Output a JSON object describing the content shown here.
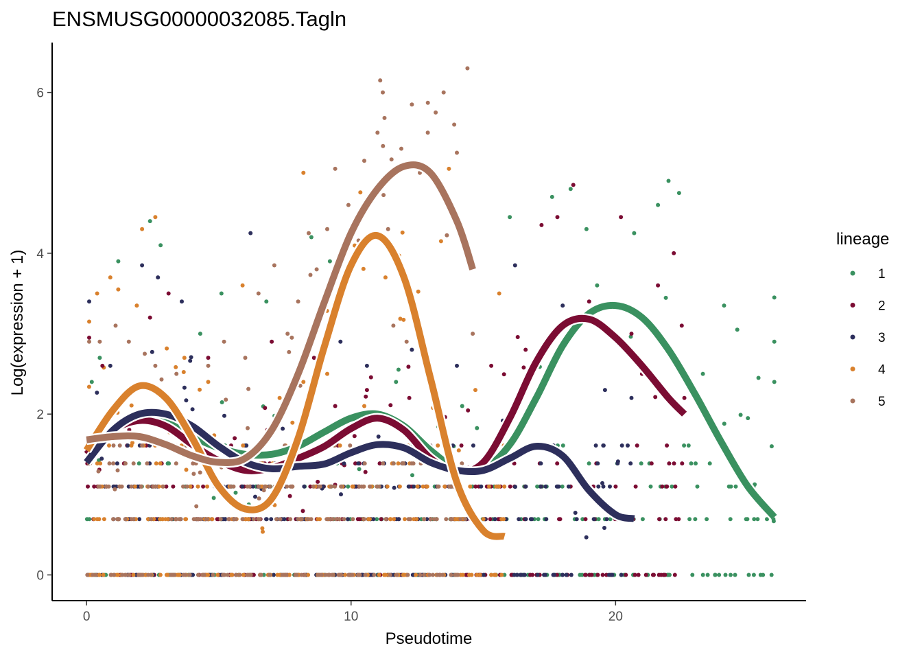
{
  "chart_data": {
    "type": "scatter",
    "title": "ENSMUSG00000032085.Tagln",
    "xlabel": "Pseudotime",
    "ylabel": "Log(expression + 1)",
    "xlim": [
      -1.3,
      27.2
    ],
    "ylim": [
      -0.32,
      6.62
    ],
    "x_ticks": [
      0,
      10,
      20
    ],
    "y_ticks": [
      0,
      2,
      4,
      6
    ],
    "x_tick_labels": [
      "0",
      "10",
      "20"
    ],
    "y_tick_labels": [
      "0",
      "2",
      "4",
      "6"
    ],
    "legend": {
      "title": "lineage",
      "position": "right",
      "entries": [
        "1",
        "2",
        "3",
        "4",
        "5"
      ]
    },
    "series": [
      {
        "name": "1",
        "color": "#3a9160",
        "smooth_x": [
          0,
          1,
          2,
          3,
          4,
          5,
          6,
          7,
          8,
          9,
          10,
          11,
          12,
          13,
          14,
          15,
          16,
          17,
          18,
          19,
          20,
          21,
          22,
          23,
          24,
          25,
          26
        ],
        "smooth_y": [
          1.5,
          1.8,
          1.95,
          1.9,
          1.72,
          1.58,
          1.5,
          1.5,
          1.6,
          1.78,
          1.95,
          2.0,
          1.85,
          1.55,
          1.32,
          1.32,
          1.62,
          2.2,
          2.85,
          3.25,
          3.35,
          3.2,
          2.8,
          2.25,
          1.65,
          1.1,
          0.72
        ],
        "points": [
          {
            "x": 0.2,
            "y": 2.4
          },
          {
            "x": 0.5,
            "y": 2.7
          },
          {
            "x": 1.2,
            "y": 3.9
          },
          {
            "x": 2.4,
            "y": 4.4
          },
          {
            "x": 2.8,
            "y": 4.1
          },
          {
            "x": 4.3,
            "y": 3.0
          },
          {
            "x": 5.1,
            "y": 3.5
          },
          {
            "x": 6.8,
            "y": 3.4
          },
          {
            "x": 8.5,
            "y": 4.2
          },
          {
            "x": 9.2,
            "y": 3.9
          },
          {
            "x": 11.7,
            "y": 2.4
          },
          {
            "x": 14.2,
            "y": 2.1
          },
          {
            "x": 16.0,
            "y": 4.45
          },
          {
            "x": 17.6,
            "y": 4.7
          },
          {
            "x": 18.3,
            "y": 4.8
          },
          {
            "x": 18.9,
            "y": 4.3
          },
          {
            "x": 19.3,
            "y": 3.6
          },
          {
            "x": 20.7,
            "y": 4.25
          },
          {
            "x": 21.6,
            "y": 4.6
          },
          {
            "x": 22.0,
            "y": 4.9
          },
          {
            "x": 22.4,
            "y": 4.75
          },
          {
            "x": 23.3,
            "y": 2.5
          },
          {
            "x": 24.1,
            "y": 3.35
          },
          {
            "x": 24.6,
            "y": 3.05
          },
          {
            "x": 25.0,
            "y": 1.95
          },
          {
            "x": 25.4,
            "y": 2.45
          },
          {
            "x": 25.9,
            "y": 1.6
          },
          {
            "x": 26.0,
            "y": 3.45
          },
          {
            "x": 26.0,
            "y": 2.9
          },
          {
            "x": 26.0,
            "y": 2.4
          }
        ]
      },
      {
        "name": "2",
        "color": "#7b0c33",
        "smooth_x": [
          0,
          1,
          2,
          3,
          4,
          5,
          6,
          7,
          8,
          9,
          10,
          11,
          12,
          13,
          14,
          15,
          16,
          17,
          18,
          19,
          20,
          21,
          22,
          22.6
        ],
        "smooth_y": [
          1.5,
          1.8,
          1.92,
          1.85,
          1.62,
          1.42,
          1.3,
          1.33,
          1.45,
          1.6,
          1.82,
          1.95,
          1.8,
          1.45,
          1.28,
          1.4,
          1.95,
          2.65,
          3.1,
          3.18,
          2.95,
          2.6,
          2.2,
          2.0
        ],
        "points": [
          {
            "x": 0.1,
            "y": 2.95
          },
          {
            "x": 0.6,
            "y": 2.6
          },
          {
            "x": 1.3,
            "y": 1.7
          },
          {
            "x": 2.4,
            "y": 3.2
          },
          {
            "x": 3.1,
            "y": 3.5
          },
          {
            "x": 4.6,
            "y": 2.7
          },
          {
            "x": 5.6,
            "y": 1.7
          },
          {
            "x": 7.0,
            "y": 2.9
          },
          {
            "x": 8.6,
            "y": 2.7
          },
          {
            "x": 9.4,
            "y": 2.1
          },
          {
            "x": 10.6,
            "y": 2.3
          },
          {
            "x": 12.2,
            "y": 2.2
          },
          {
            "x": 15.3,
            "y": 2.6
          },
          {
            "x": 16.6,
            "y": 2.8
          },
          {
            "x": 17.2,
            "y": 4.35
          },
          {
            "x": 17.8,
            "y": 4.45
          },
          {
            "x": 18.4,
            "y": 4.85
          },
          {
            "x": 19.0,
            "y": 3.4
          },
          {
            "x": 20.2,
            "y": 4.45
          },
          {
            "x": 20.6,
            "y": 3.0
          },
          {
            "x": 21.0,
            "y": 2.5
          },
          {
            "x": 21.6,
            "y": 3.6
          },
          {
            "x": 22.2,
            "y": 4.0
          },
          {
            "x": 22.5,
            "y": 3.1
          },
          {
            "x": 22.6,
            "y": 2.2
          }
        ]
      },
      {
        "name": "3",
        "color": "#2d2f5c",
        "smooth_x": [
          0,
          1,
          2,
          3,
          4,
          5,
          6,
          7,
          8,
          9,
          10,
          11,
          12,
          13,
          14,
          15,
          16,
          17,
          18,
          19,
          20,
          20.7
        ],
        "smooth_y": [
          1.4,
          1.8,
          2.0,
          2.0,
          1.85,
          1.6,
          1.4,
          1.32,
          1.35,
          1.38,
          1.52,
          1.62,
          1.58,
          1.4,
          1.3,
          1.3,
          1.45,
          1.6,
          1.48,
          1.05,
          0.75,
          0.7
        ],
        "points": [
          {
            "x": 0.1,
            "y": 3.4
          },
          {
            "x": 0.9,
            "y": 2.6
          },
          {
            "x": 2.1,
            "y": 3.85
          },
          {
            "x": 2.7,
            "y": 3.7
          },
          {
            "x": 3.6,
            "y": 3.4
          },
          {
            "x": 6.2,
            "y": 4.25
          },
          {
            "x": 9.6,
            "y": 2.9
          },
          {
            "x": 10.6,
            "y": 2.6
          },
          {
            "x": 12.3,
            "y": 2.8
          },
          {
            "x": 14.0,
            "y": 2.6
          },
          {
            "x": 16.2,
            "y": 3.85
          },
          {
            "x": 17.4,
            "y": 2.5
          },
          {
            "x": 18.0,
            "y": 3.35
          },
          {
            "x": 19.6,
            "y": 2.3
          },
          {
            "x": 20.6,
            "y": 2.2
          }
        ]
      },
      {
        "name": "4",
        "color": "#d9812d",
        "smooth_x": [
          0,
          1,
          2,
          3,
          4,
          5,
          6,
          7,
          8,
          9,
          10,
          11,
          12,
          13,
          14,
          15,
          15.8
        ],
        "smooth_y": [
          1.55,
          2.05,
          2.35,
          2.2,
          1.7,
          1.1,
          0.82,
          0.95,
          1.7,
          2.85,
          3.85,
          4.22,
          3.7,
          2.45,
          1.15,
          0.55,
          0.48
        ],
        "points": [
          {
            "x": 0.1,
            "y": 3.15
          },
          {
            "x": 0.4,
            "y": 3.5
          },
          {
            "x": 0.9,
            "y": 3.7
          },
          {
            "x": 1.2,
            "y": 3.55
          },
          {
            "x": 1.9,
            "y": 3.35
          },
          {
            "x": 2.1,
            "y": 4.3
          },
          {
            "x": 2.6,
            "y": 4.45
          },
          {
            "x": 3.7,
            "y": 2.7
          },
          {
            "x": 4.6,
            "y": 2.4
          },
          {
            "x": 5.9,
            "y": 3.6
          },
          {
            "x": 7.3,
            "y": 2.2
          },
          {
            "x": 8.2,
            "y": 2.4
          },
          {
            "x": 8.2,
            "y": 5.0
          },
          {
            "x": 9.1,
            "y": 2.5
          },
          {
            "x": 10.5,
            "y": 2.1
          },
          {
            "x": 11.3,
            "y": 3.7
          },
          {
            "x": 13.4,
            "y": 4.15
          },
          {
            "x": 13.7,
            "y": 5.05
          },
          {
            "x": 14.7,
            "y": 2.3
          },
          {
            "x": 15.6,
            "y": 3.5
          }
        ]
      },
      {
        "name": "5",
        "color": "#a8745e",
        "smooth_x": [
          0,
          1,
          2,
          3,
          4,
          5,
          6,
          7,
          8,
          9,
          10,
          11,
          12,
          13,
          14,
          14.6
        ],
        "smooth_y": [
          1.68,
          1.72,
          1.72,
          1.62,
          1.48,
          1.4,
          1.45,
          1.8,
          2.5,
          3.4,
          4.25,
          4.8,
          5.08,
          5.0,
          4.4,
          3.8
        ],
        "points": [
          {
            "x": 0.1,
            "y": 2.9
          },
          {
            "x": 0.5,
            "y": 2.9
          },
          {
            "x": 1.1,
            "y": 3.1
          },
          {
            "x": 1.6,
            "y": 2.9
          },
          {
            "x": 2.2,
            "y": 2.75
          },
          {
            "x": 2.6,
            "y": 2.6
          },
          {
            "x": 3.4,
            "y": 2.5
          },
          {
            "x": 4.6,
            "y": 2.6
          },
          {
            "x": 5.2,
            "y": 2.9
          },
          {
            "x": 6.0,
            "y": 2.7
          },
          {
            "x": 6.5,
            "y": 3.5
          },
          {
            "x": 7.1,
            "y": 3.85
          },
          {
            "x": 7.6,
            "y": 3.0
          },
          {
            "x": 8.0,
            "y": 3.4
          },
          {
            "x": 8.4,
            "y": 4.25
          },
          {
            "x": 8.7,
            "y": 3.8
          },
          {
            "x": 9.1,
            "y": 4.3
          },
          {
            "x": 9.4,
            "y": 5.05
          },
          {
            "x": 9.9,
            "y": 4.6
          },
          {
            "x": 10.2,
            "y": 3.9
          },
          {
            "x": 10.5,
            "y": 5.15
          },
          {
            "x": 10.8,
            "y": 4.7
          },
          {
            "x": 11.0,
            "y": 5.5
          },
          {
            "x": 11.1,
            "y": 6.15
          },
          {
            "x": 11.2,
            "y": 6.0
          },
          {
            "x": 11.4,
            "y": 4.3
          },
          {
            "x": 11.6,
            "y": 3.1
          },
          {
            "x": 11.9,
            "y": 5.3
          },
          {
            "x": 12.1,
            "y": 2.9
          },
          {
            "x": 12.3,
            "y": 5.85
          },
          {
            "x": 12.6,
            "y": 5.0
          },
          {
            "x": 12.9,
            "y": 5.5
          },
          {
            "x": 13.2,
            "y": 5.75
          },
          {
            "x": 13.5,
            "y": 6.0
          },
          {
            "x": 13.7,
            "y": 4.6
          },
          {
            "x": 13.9,
            "y": 5.6
          },
          {
            "x": 14.0,
            "y": 5.25
          },
          {
            "x": 14.3,
            "y": 4.2
          },
          {
            "x": 14.4,
            "y": 6.3
          },
          {
            "x": 14.6,
            "y": 3.0
          }
        ]
      }
    ]
  }
}
